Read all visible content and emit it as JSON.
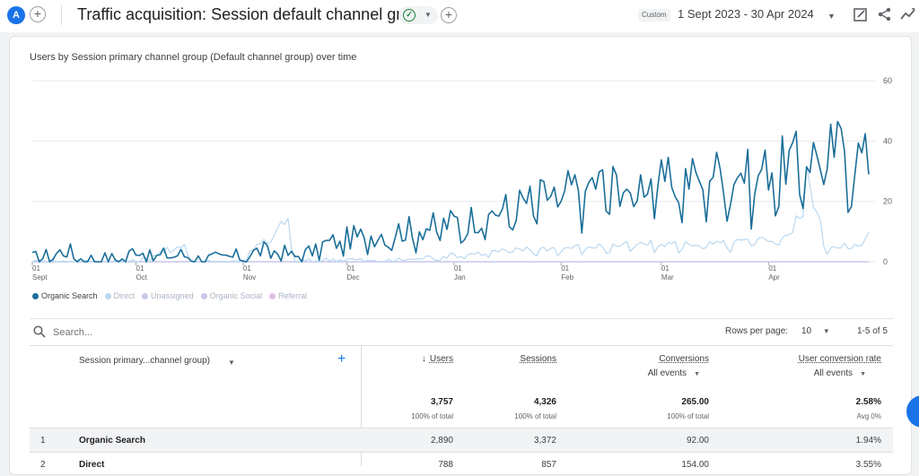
{
  "header": {
    "avatar_letter": "A",
    "title": "Traffic acquisition: Session default channel group",
    "custom_label": "Custom",
    "date_range": "1 Sept 2023 - 30 Apr 2024"
  },
  "chart": {
    "title": "Users by Session primary channel group (Default channel group) over time",
    "legend": [
      {
        "name": "Organic Search",
        "color": "#1a6e99"
      },
      {
        "name": "Direct",
        "color": "#b9d8f0"
      },
      {
        "name": "Unassigned",
        "color": "#c5cae9"
      },
      {
        "name": "Organic Social",
        "color": "#d1c4e9"
      },
      {
        "name": "Referral",
        "color": "#e1bee7"
      }
    ],
    "y_ticks": [
      "60",
      "40",
      "20",
      "0"
    ],
    "x_ticks": [
      {
        "day": "01",
        "month": "Sept"
      },
      {
        "day": "01",
        "month": "Oct"
      },
      {
        "day": "01",
        "month": "Nov"
      },
      {
        "day": "01",
        "month": "Dec"
      },
      {
        "day": "01",
        "month": "Jan"
      },
      {
        "day": "01",
        "month": "Feb"
      },
      {
        "day": "01",
        "month": "Mar"
      },
      {
        "day": "01",
        "month": "Apr"
      }
    ]
  },
  "chart_data": {
    "type": "line",
    "ylim": [
      0,
      60
    ],
    "x_days": 243,
    "series": [
      {
        "name": "Organic Search",
        "color": "#1a6e99",
        "anchors": [
          [
            0,
            1
          ],
          [
            5,
            2
          ],
          [
            10,
            4
          ],
          [
            14,
            1
          ],
          [
            20,
            1
          ],
          [
            27,
            1
          ],
          [
            30,
            5
          ],
          [
            35,
            1
          ],
          [
            40,
            3
          ],
          [
            45,
            2
          ],
          [
            50,
            1
          ],
          [
            55,
            1
          ],
          [
            61,
            2
          ],
          [
            67,
            4
          ],
          [
            72,
            3
          ],
          [
            78,
            2
          ],
          [
            85,
            6
          ],
          [
            92,
            8
          ],
          [
            98,
            9
          ],
          [
            103,
            10
          ],
          [
            110,
            11
          ],
          [
            117,
            12
          ],
          [
            124,
            14
          ],
          [
            130,
            15
          ],
          [
            137,
            18
          ],
          [
            143,
            20
          ],
          [
            148,
            22
          ],
          [
            153,
            23
          ],
          [
            160,
            26
          ],
          [
            166,
            27
          ],
          [
            173,
            25
          ],
          [
            178,
            28
          ],
          [
            184,
            27
          ],
          [
            190,
            28
          ],
          [
            195,
            30
          ],
          [
            202,
            31
          ],
          [
            208,
            29
          ],
          [
            214,
            32
          ],
          [
            220,
            34
          ],
          [
            226,
            36
          ],
          [
            232,
            38
          ],
          [
            236,
            40
          ],
          [
            239,
            36
          ],
          [
            242,
            34
          ]
        ]
      },
      {
        "name": "Direct",
        "color": "#b9d8f0",
        "anchors": [
          [
            0,
            0
          ],
          [
            30,
            0
          ],
          [
            44,
            6
          ],
          [
            46,
            0
          ],
          [
            60,
            0
          ],
          [
            74,
            14
          ],
          [
            76,
            0
          ],
          [
            90,
            1
          ],
          [
            100,
            0
          ],
          [
            120,
            2
          ],
          [
            140,
            4
          ],
          [
            160,
            5
          ],
          [
            180,
            6
          ],
          [
            200,
            6
          ],
          [
            215,
            8
          ],
          [
            220,
            10
          ],
          [
            224,
            30
          ],
          [
            226,
            20
          ],
          [
            230,
            5
          ],
          [
            236,
            6
          ],
          [
            240,
            5
          ],
          [
            242,
            9
          ]
        ]
      },
      {
        "name": "Unassigned",
        "color": "#c5cae9",
        "anchors": [
          [
            0,
            0
          ],
          [
            242,
            0
          ]
        ]
      },
      {
        "name": "Organic Social",
        "color": "#d1c4e9",
        "anchors": [
          [
            0,
            0
          ],
          [
            242,
            0
          ]
        ]
      },
      {
        "name": "Referral",
        "color": "#e1bee7",
        "anchors": [
          [
            0,
            0
          ],
          [
            242,
            0
          ]
        ]
      }
    ]
  },
  "toolbar": {
    "search_placeholder": "Search...",
    "rows_per_page_label": "Rows per page:",
    "rows_per_page_value": "10",
    "pagination": "1-5 of 5"
  },
  "table": {
    "dimension_header": "Session primary...channel group)",
    "columns": [
      {
        "label": "Users",
        "sub": "",
        "total": "3,757",
        "total_sub": "100% of total"
      },
      {
        "label": "Sessions",
        "sub": "",
        "total": "4,326",
        "total_sub": "100% of total"
      },
      {
        "label": "Conversions",
        "sub": "All events",
        "total": "265.00",
        "total_sub": "100% of total"
      },
      {
        "label": "User conversion rate",
        "sub": "All events",
        "total": "2.58%",
        "total_sub": "Avg 0%"
      }
    ],
    "rows": [
      {
        "num": "1",
        "name": "Organic Search",
        "users": "2,890",
        "sessions": "3,372",
        "conversions": "92.00",
        "rate": "1.94%"
      },
      {
        "num": "2",
        "name": "Direct",
        "users": "788",
        "sessions": "857",
        "conversions": "154.00",
        "rate": "3.55%"
      }
    ]
  }
}
